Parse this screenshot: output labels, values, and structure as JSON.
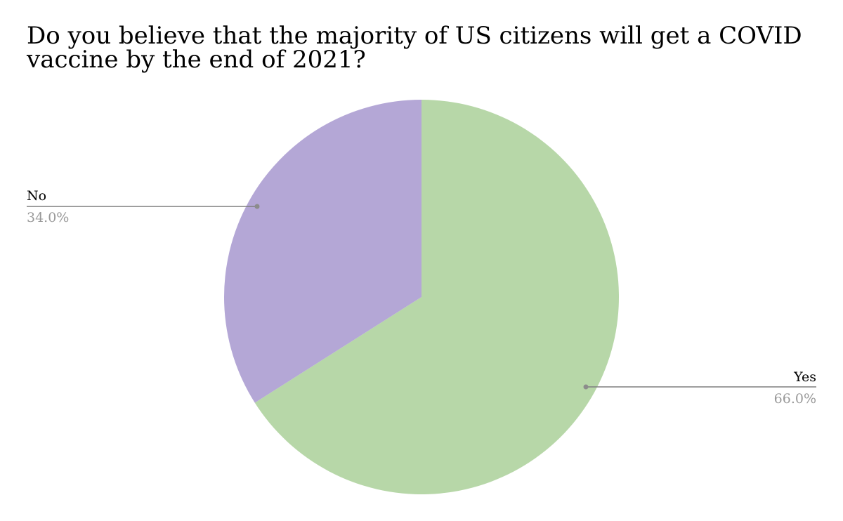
{
  "chart_data": {
    "type": "pie",
    "title": "Do you believe that the majority of US citizens will get a COVID vaccine by the end of 2021?",
    "slices": [
      {
        "name": "Yes",
        "value": 66.0,
        "label": "66.0%",
        "color": "#b7d7a8"
      },
      {
        "name": "No",
        "value": 34.0,
        "label": "34.0%",
        "color": "#b4a7d6"
      }
    ],
    "start_angle_deg": 0,
    "direction": "clockwise"
  },
  "colors": {
    "leader_line": "#7f7f7f",
    "name_text": "#000000",
    "pct_text": "#999999"
  }
}
